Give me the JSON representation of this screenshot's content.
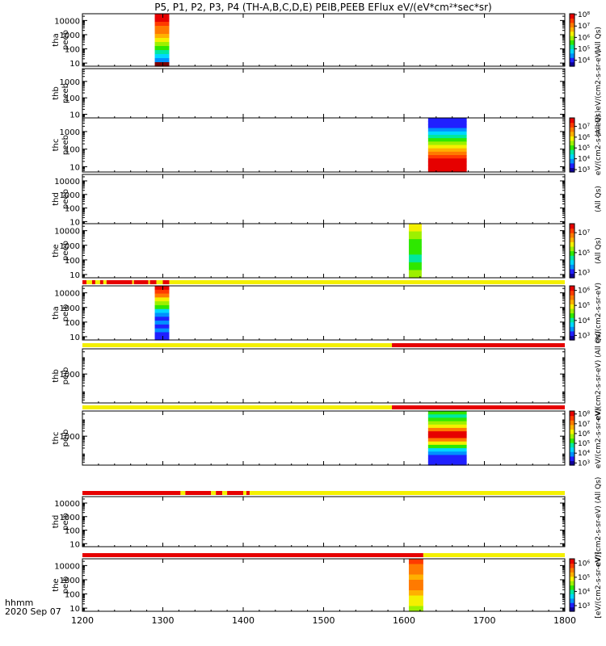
{
  "title": "P5, P1, P2, P3, P4 (TH-A,B,C,D,E) PEIB,PEEB EFlux eV/(eV*cm²*sec*sr)",
  "x_axis": {
    "range": [
      1200,
      1800
    ],
    "ticks": [
      "1200",
      "1300",
      "1400",
      "1500",
      "1600",
      "1700",
      "1800"
    ],
    "label_line1": "hhmm",
    "label_line2": "2020 Sep 07"
  },
  "chart_data": [
    {
      "type": "heatmap",
      "ylabel_line1": "tha",
      "ylabel_line2": "peeb",
      "ylog": true,
      "yticks": [
        "10000",
        "1000",
        "100",
        "10"
      ],
      "y_tick_values": [
        10000,
        1000,
        100,
        10
      ],
      "ylim": [
        6,
        30000
      ],
      "blocks": [
        {
          "x0": 1290,
          "x1": 1308,
          "rows": [
            "red",
            "red",
            "orange-red",
            "orange",
            "orange",
            "yellow-orange",
            "yellow",
            "yellow-green",
            "green",
            "cyan-green",
            "cyan",
            "sky-blue",
            "dark-red"
          ]
        }
      ],
      "colorbar": {
        "label": "(All Qs)",
        "ticks": [
          "10⁸",
          "10⁷",
          "10⁶",
          "10⁵",
          "10⁴"
        ],
        "tick_values": [
          100000000.0,
          10000000.0,
          1000000.0,
          100000.0,
          10000.0
        ],
        "range": [
          3000.0,
          120000000.0
        ]
      }
    },
    {
      "type": "heatmap",
      "ylabel_line1": "thb",
      "ylabel_line2": "peeb",
      "ylog": true,
      "yticks": [
        "1000",
        "100",
        "10"
      ],
      "y_tick_values": [
        1000,
        100,
        10
      ],
      "ylim": [
        6,
        6000
      ],
      "blocks": [],
      "colorbar": {
        "label": "(All Qs)eV/(cm2-s-sr-eV)",
        "ticks": [],
        "tick_values": [],
        "range": null
      }
    },
    {
      "type": "heatmap",
      "ylabel_line1": "thc",
      "ylabel_line2": "peeb",
      "ylog": true,
      "yticks": [
        "1000",
        "100",
        "10"
      ],
      "y_tick_values": [
        1000,
        100,
        10
      ],
      "ylim": [
        5,
        6000
      ],
      "blocks": [
        {
          "x0": 1630,
          "x1": 1678,
          "rows": [
            "blue",
            "blue",
            "blue",
            "sky-blue",
            "cyan",
            "cyan-green",
            "green",
            "yellow-green",
            "yellow",
            "yellow-orange",
            "orange",
            "orange-red",
            "red",
            "red",
            "red",
            "red"
          ]
        }
      ],
      "colorbar": {
        "label": "eV/(cm2-s-sr-eV)",
        "ticks": [
          "10⁷",
          "10⁶",
          "10⁵",
          "10⁴",
          "10³"
        ],
        "tick_values": [
          10000000.0,
          1000000.0,
          100000.0,
          10000.0,
          1000.0
        ],
        "range": [
          600.0,
          60000000.0
        ]
      }
    },
    {
      "type": "heatmap",
      "ylabel_line1": "thd",
      "ylabel_line2": "peeb",
      "ylog": true,
      "yticks": [
        "10000",
        "1000",
        "100",
        "10"
      ],
      "y_tick_values": [
        10000,
        1000,
        100,
        10
      ],
      "ylim": [
        7,
        30000
      ],
      "blocks": [],
      "colorbar": {
        "label": "(All Qs)",
        "ticks": [],
        "tick_values": [],
        "range": null
      }
    },
    {
      "type": "heatmap",
      "ylabel_line1": "the",
      "ylabel_line2": "peeb",
      "ylog": true,
      "yticks": [
        "10000",
        "1000",
        "100",
        "10"
      ],
      "y_tick_values": [
        10000,
        1000,
        100,
        10
      ],
      "ylim": [
        6,
        30000
      ],
      "blocks": [
        {
          "x0": 1606,
          "x1": 1622,
          "rows": [
            "yellow",
            "yellow-green",
            "green",
            "green",
            "cyan-green",
            "green",
            "yellow-green"
          ]
        }
      ],
      "colorbar": {
        "label": "(All Qs)",
        "ticks": [
          "10⁷",
          "10⁵",
          "10³"
        ],
        "tick_values": [
          10000000.0,
          100000.0,
          1000.0
        ],
        "range": [
          300.0,
          80000000.0
        ]
      }
    },
    {
      "type": "heatmap",
      "ylabel_line1": "tha",
      "ylabel_line2": "peib",
      "ylog": true,
      "yticks": [
        "10000",
        "1000",
        "100",
        "10"
      ],
      "y_tick_values": [
        10000,
        1000,
        100,
        10
      ],
      "ylim": [
        6,
        30000
      ],
      "status_bar": [
        {
          "x0": 1200,
          "x1": 1205,
          "color": "red"
        },
        {
          "x0": 1205,
          "x1": 1212,
          "color": "yellow"
        },
        {
          "x0": 1212,
          "x1": 1216,
          "color": "red"
        },
        {
          "x0": 1216,
          "x1": 1222,
          "color": "yellow"
        },
        {
          "x0": 1222,
          "x1": 1226,
          "color": "red"
        },
        {
          "x0": 1226,
          "x1": 1230,
          "color": "yellow"
        },
        {
          "x0": 1230,
          "x1": 1262,
          "color": "red"
        },
        {
          "x0": 1262,
          "x1": 1264,
          "color": "yellow"
        },
        {
          "x0": 1264,
          "x1": 1282,
          "color": "red"
        },
        {
          "x0": 1282,
          "x1": 1284,
          "color": "yellow"
        },
        {
          "x0": 1284,
          "x1": 1292,
          "color": "red"
        },
        {
          "x0": 1292,
          "x1": 1300,
          "color": "yellow"
        },
        {
          "x0": 1300,
          "x1": 1308,
          "color": "red"
        },
        {
          "x0": 1308,
          "x1": 1800,
          "color": "yellow"
        }
      ],
      "blocks": [
        {
          "x0": 1290,
          "x1": 1308,
          "rows": [
            "red",
            "orange-red",
            "orange",
            "yellow",
            "yellow-green",
            "green",
            "cyan",
            "sky-blue",
            "blue",
            "sky-blue",
            "blue",
            "sky-blue",
            "blue",
            "blue"
          ]
        }
      ],
      "colorbar": {
        "label": "eV/(cm2-s-sr-eV)",
        "ticks": [
          "10⁶",
          "10⁵",
          "10⁴",
          "10³"
        ],
        "tick_values": [
          1000000.0,
          100000.0,
          10000.0,
          1000.0
        ],
        "range": [
          500.0,
          2000000.0
        ]
      }
    },
    {
      "type": "heatmap",
      "ylabel_line1": "thb",
      "ylabel_line2": "peib",
      "ylog": true,
      "yticks": [
        "1000"
      ],
      "y_tick_values": [
        1000
      ],
      "ylim": [
        20,
        30000
      ],
      "status_bar": [
        {
          "x0": 1200,
          "x1": 1585,
          "color": "yellow"
        },
        {
          "x0": 1585,
          "x1": 1800,
          "color": "red"
        }
      ],
      "blocks": [],
      "colorbar": {
        "label": "eV/(cm2-s-sr-eV) (All Qs)",
        "ticks": [],
        "tick_values": [],
        "range": null
      }
    },
    {
      "type": "heatmap",
      "ylabel_line1": "thc",
      "ylabel_line2": "peib",
      "ylog": true,
      "yticks": [
        "1000"
      ],
      "y_tick_values": [
        1000
      ],
      "ylim": [
        20,
        30000
      ],
      "status_bar": [
        {
          "x0": 1200,
          "x1": 1585,
          "color": "yellow"
        },
        {
          "x0": 1585,
          "x1": 1800,
          "color": "red"
        }
      ],
      "blocks": [
        {
          "x0": 1630,
          "x1": 1678,
          "rows": [
            "green",
            "cyan-green",
            "green",
            "yellow-green",
            "yellow",
            "orange",
            "red",
            "red",
            "orange",
            "yellow",
            "green",
            "cyan",
            "sky-blue",
            "blue",
            "blue",
            "blue"
          ]
        }
      ],
      "colorbar": {
        "label": "eV/(cm2-s-sr-eV)",
        "ticks": [
          "10⁸",
          "10⁷",
          "10⁶",
          "10⁵",
          "10⁴",
          "10³"
        ],
        "tick_values": [
          100000000.0,
          10000000.0,
          1000000.0,
          100000.0,
          10000.0,
          1000.0
        ],
        "range": [
          600.0,
          200000000.0
        ]
      }
    },
    {
      "type": "heatmap",
      "ylabel_line1": "thd",
      "ylabel_line2": "peib",
      "ylog": true,
      "yticks": [
        "10000",
        "1000",
        "100",
        "10"
      ],
      "y_tick_values": [
        10000,
        1000,
        100,
        10
      ],
      "ylim": [
        6,
        30000
      ],
      "status_bar": [
        {
          "x0": 1200,
          "x1": 1322,
          "color": "red"
        },
        {
          "x0": 1322,
          "x1": 1328,
          "color": "yellow"
        },
        {
          "x0": 1328,
          "x1": 1360,
          "color": "red"
        },
        {
          "x0": 1360,
          "x1": 1366,
          "color": "yellow"
        },
        {
          "x0": 1366,
          "x1": 1374,
          "color": "red"
        },
        {
          "x0": 1374,
          "x1": 1380,
          "color": "yellow"
        },
        {
          "x0": 1380,
          "x1": 1400,
          "color": "red"
        },
        {
          "x0": 1400,
          "x1": 1404,
          "color": "yellow"
        },
        {
          "x0": 1404,
          "x1": 1408,
          "color": "red"
        },
        {
          "x0": 1408,
          "x1": 1800,
          "color": "yellow"
        }
      ],
      "blocks": [],
      "colorbar": {
        "label": "eV/(cm2-s-sr-eV) (All Qs)",
        "ticks": [],
        "tick_values": [],
        "range": null
      }
    },
    {
      "type": "heatmap",
      "ylabel_line1": "the",
      "ylabel_line2": "peib",
      "ylog": true,
      "yticks": [
        "10000",
        "1000",
        "100",
        "10"
      ],
      "y_tick_values": [
        10000,
        1000,
        100,
        10
      ],
      "ylim": [
        6,
        30000
      ],
      "status_bar": [
        {
          "x0": 1200,
          "x1": 1624,
          "color": "red"
        },
        {
          "x0": 1624,
          "x1": 1800,
          "color": "yellow"
        }
      ],
      "blocks": [
        {
          "x0": 1606,
          "x1": 1624,
          "rows": [
            "orange-red",
            "orange",
            "orange",
            "yellow-orange",
            "orange",
            "orange",
            "yellow-orange",
            "yellow",
            "yellow",
            "yellow-green"
          ]
        }
      ],
      "colorbar": {
        "label": "[eV/(cm2-s-sr-eV)]",
        "ticks": [
          "10⁶",
          "10⁵",
          "10⁴",
          "10³"
        ],
        "tick_values": [
          1000000.0,
          100000.0,
          10000.0,
          1000.0
        ],
        "range": [
          400.0,
          2000000.0
        ]
      }
    }
  ],
  "colors": {
    "dark-red": "#7a0000",
    "red": "#e60000",
    "orange-red": "#ff3a00",
    "orange": "#ff7a00",
    "yellow-orange": "#ffb000",
    "yellow": "#f4f000",
    "yellow-green": "#9df000",
    "green": "#2ee800",
    "cyan-green": "#00e8a0",
    "cyan": "#00d8ff",
    "sky-blue": "#0090ff",
    "blue": "#2020ff",
    "dark-blue": "#10009a",
    "black": "#000000"
  }
}
